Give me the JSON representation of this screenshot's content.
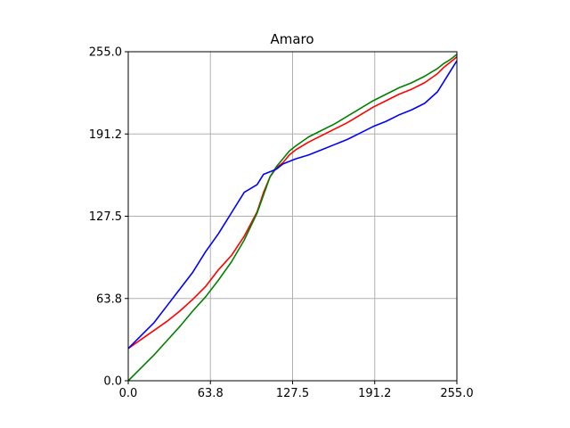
{
  "chart_data": {
    "type": "line",
    "title": "Amaro",
    "xlabel": "",
    "ylabel": "",
    "xlim": [
      0,
      255
    ],
    "ylim": [
      0,
      255
    ],
    "x_ticks": [
      "0.0",
      "63.8",
      "127.5",
      "191.2",
      "255.0"
    ],
    "y_ticks": [
      "0.0",
      "63.8",
      "127.5",
      "191.2",
      "255.0"
    ],
    "x_tick_values": [
      0,
      63.75,
      127.5,
      191.25,
      255
    ],
    "y_tick_values": [
      0,
      63.75,
      127.5,
      191.25,
      255
    ],
    "grid": true,
    "legend": "none",
    "colors": {
      "red": "#ff0000",
      "green": "#008000",
      "blue": "#0000ff",
      "grid": "#b0b0b0",
      "axes": "#000000"
    },
    "series": [
      {
        "color": "#ff0000",
        "x": [
          0,
          10,
          20,
          30,
          40,
          50,
          60,
          70,
          80,
          90,
          100,
          105,
          110,
          115,
          120,
          125,
          130,
          140,
          150,
          160,
          170,
          180,
          190,
          200,
          210,
          220,
          230,
          240,
          245,
          250,
          255
        ],
        "y": [
          25,
          32,
          39,
          46,
          54,
          63,
          73,
          86,
          97,
          112,
          131,
          146,
          158,
          165,
          169,
          175,
          179,
          185,
          190,
          195,
          200,
          206,
          212,
          217,
          222,
          226,
          231,
          238,
          243,
          247,
          251
        ]
      },
      {
        "color": "#008000",
        "x": [
          0,
          10,
          20,
          30,
          40,
          50,
          60,
          70,
          80,
          90,
          100,
          105,
          110,
          115,
          120,
          125,
          130,
          140,
          150,
          160,
          170,
          180,
          190,
          200,
          210,
          220,
          230,
          240,
          245,
          250,
          255
        ],
        "y": [
          0,
          10,
          20,
          31,
          42,
          54,
          65,
          78,
          92,
          109,
          130,
          144,
          158,
          166,
          172,
          178,
          182,
          189,
          194,
          199,
          205,
          211,
          217,
          222,
          227,
          231,
          236,
          242,
          246,
          249,
          253
        ]
      },
      {
        "color": "#0000ff",
        "x": [
          0,
          10,
          20,
          30,
          40,
          50,
          60,
          70,
          80,
          90,
          100,
          105,
          110,
          115,
          120,
          125,
          130,
          140,
          150,
          160,
          170,
          180,
          190,
          200,
          210,
          220,
          230,
          240,
          245,
          250,
          255
        ],
        "y": [
          25,
          35,
          45,
          58,
          71,
          84,
          100,
          114,
          130,
          146,
          152,
          160,
          162,
          164,
          168,
          170,
          172,
          175,
          179,
          183,
          187,
          192,
          197,
          201,
          206,
          210,
          215,
          224,
          232,
          240,
          248
        ]
      }
    ]
  }
}
